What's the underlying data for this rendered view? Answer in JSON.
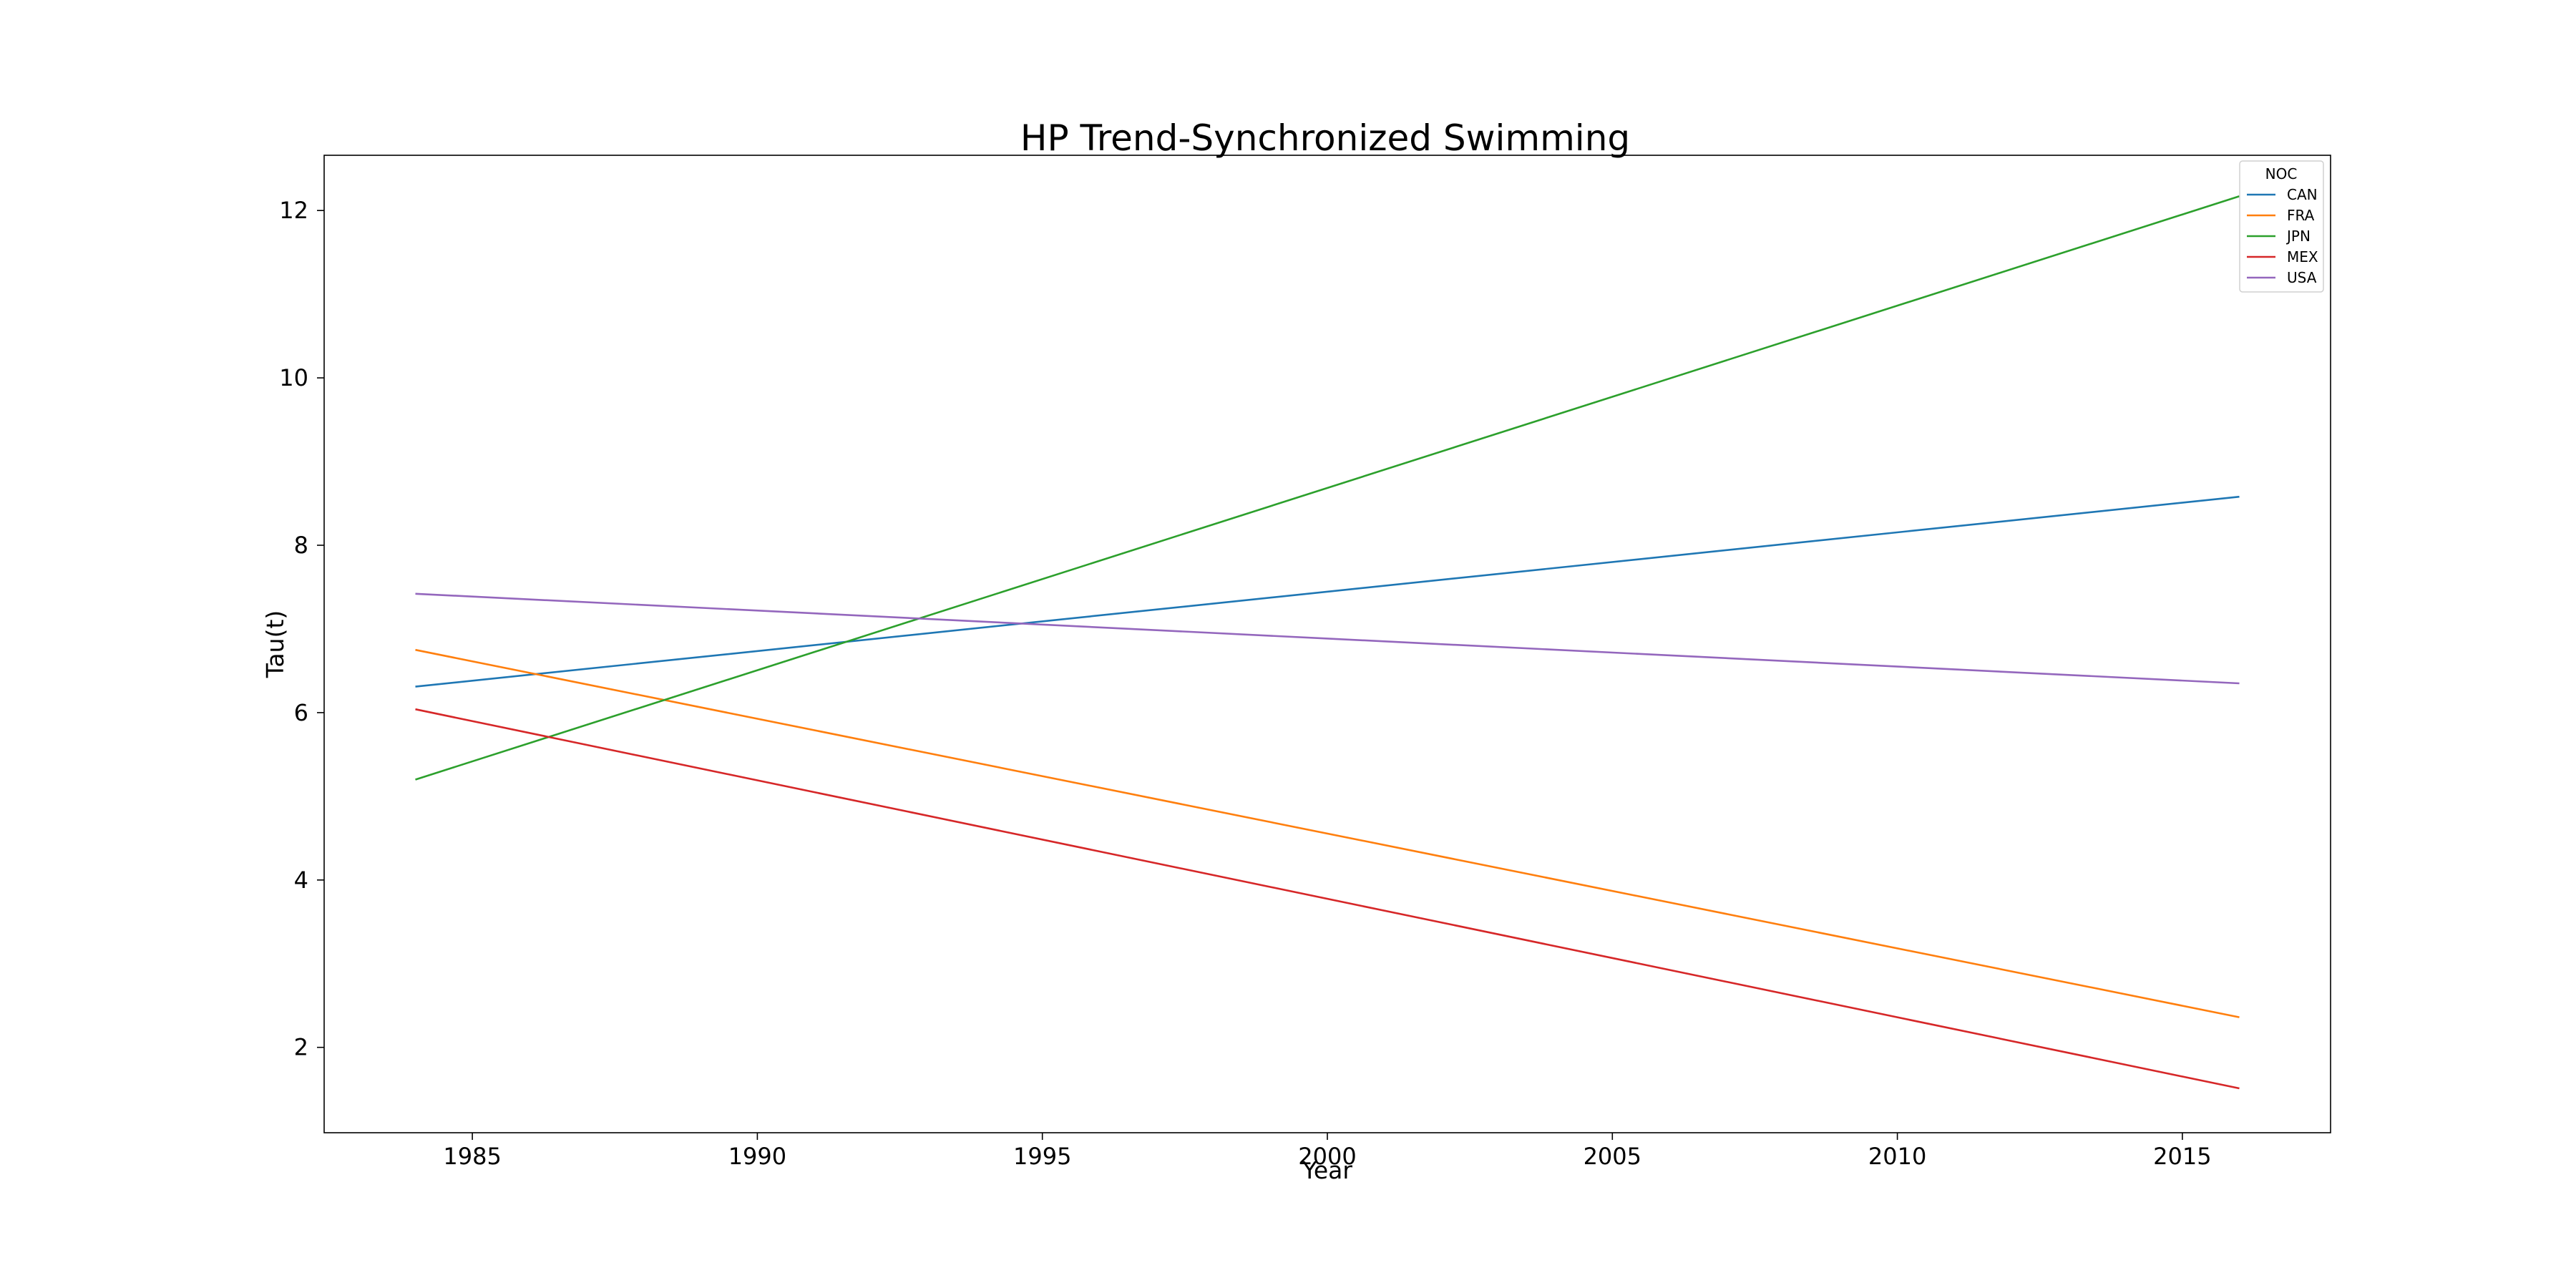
{
  "chart_data": {
    "type": "line",
    "title": "HP Trend-Synchronized Swimming",
    "xlabel": "Year",
    "ylabel": "Tau(t)",
    "xlim": [
      1982.4,
      2017.6
    ],
    "ylim": [
      0.98,
      12.66
    ],
    "xticks": [
      1985,
      1990,
      1995,
      2000,
      2005,
      2010,
      2015
    ],
    "yticks": [
      2,
      4,
      6,
      8,
      10,
      12
    ],
    "grid": false,
    "legend": {
      "title": "NOC",
      "placement": "top-right"
    },
    "series": [
      {
        "name": "CAN",
        "color": "#1f77b4",
        "x": [
          1984,
          2016
        ],
        "y": [
          6.31,
          8.58
        ]
      },
      {
        "name": "FRA",
        "color": "#ff7f0e",
        "x": [
          1984,
          2016
        ],
        "y": [
          6.75,
          2.36
        ]
      },
      {
        "name": "JPN",
        "color": "#2ca02c",
        "x": [
          1984,
          2016
        ],
        "y": [
          5.2,
          12.17
        ]
      },
      {
        "name": "MEX",
        "color": "#d62728",
        "x": [
          1984,
          2016
        ],
        "y": [
          6.04,
          1.51
        ]
      },
      {
        "name": "USA",
        "color": "#9467bd",
        "x": [
          1984,
          2016
        ],
        "y": [
          7.42,
          6.35
        ]
      }
    ]
  }
}
